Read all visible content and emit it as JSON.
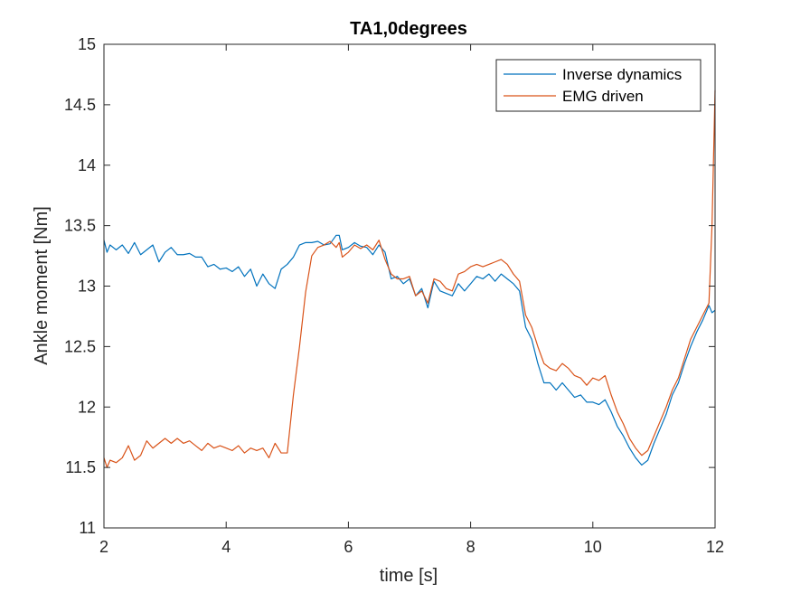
{
  "chart_data": {
    "type": "line",
    "title": "TA1,0degrees",
    "xlabel": "time  [s]",
    "ylabel": "Ankle moment [Nm]",
    "xlim": [
      2,
      12
    ],
    "ylim": [
      11,
      15
    ],
    "xticks": [
      2,
      4,
      6,
      8,
      10,
      12
    ],
    "yticks": [
      11,
      11.5,
      12,
      12.5,
      13,
      13.5,
      14,
      14.5,
      15
    ],
    "grid": false,
    "legend_position": "top-right",
    "series": [
      {
        "name": "Inverse dynamics",
        "color": "#0072BD",
        "x": [
          2.0,
          2.05,
          2.1,
          2.2,
          2.3,
          2.4,
          2.5,
          2.6,
          2.7,
          2.8,
          2.9,
          3.0,
          3.1,
          3.2,
          3.3,
          3.4,
          3.5,
          3.6,
          3.7,
          3.8,
          3.9,
          4.0,
          4.1,
          4.2,
          4.3,
          4.4,
          4.5,
          4.6,
          4.7,
          4.8,
          4.9,
          5.0,
          5.1,
          5.2,
          5.3,
          5.4,
          5.5,
          5.6,
          5.7,
          5.8,
          5.85,
          5.9,
          6.0,
          6.1,
          6.2,
          6.3,
          6.4,
          6.5,
          6.6,
          6.7,
          6.8,
          6.9,
          7.0,
          7.1,
          7.2,
          7.3,
          7.4,
          7.5,
          7.6,
          7.7,
          7.8,
          7.9,
          8.0,
          8.1,
          8.2,
          8.3,
          8.4,
          8.5,
          8.6,
          8.7,
          8.8,
          8.9,
          9.0,
          9.1,
          9.2,
          9.3,
          9.4,
          9.5,
          9.6,
          9.7,
          9.8,
          9.9,
          10.0,
          10.1,
          10.2,
          10.3,
          10.4,
          10.5,
          10.6,
          10.7,
          10.8,
          10.9,
          11.0,
          11.1,
          11.2,
          11.3,
          11.4,
          11.5,
          11.6,
          11.7,
          11.8,
          11.9,
          11.95,
          12.0
        ],
        "y": [
          13.38,
          13.28,
          13.34,
          13.3,
          13.34,
          13.27,
          13.36,
          13.26,
          13.3,
          13.34,
          13.2,
          13.28,
          13.32,
          13.26,
          13.26,
          13.27,
          13.24,
          13.24,
          13.16,
          13.18,
          13.14,
          13.15,
          13.12,
          13.16,
          13.08,
          13.14,
          13.0,
          13.1,
          13.02,
          12.98,
          13.14,
          13.18,
          13.24,
          13.34,
          13.36,
          13.36,
          13.37,
          13.34,
          13.35,
          13.42,
          13.42,
          13.3,
          13.32,
          13.36,
          13.33,
          13.32,
          13.26,
          13.34,
          13.28,
          13.06,
          13.08,
          13.02,
          13.06,
          12.92,
          12.98,
          12.82,
          13.04,
          12.96,
          12.94,
          12.92,
          13.02,
          12.96,
          13.02,
          13.08,
          13.06,
          13.1,
          13.04,
          13.1,
          13.06,
          13.02,
          12.96,
          12.66,
          12.56,
          12.36,
          12.2,
          12.2,
          12.14,
          12.2,
          12.14,
          12.08,
          12.1,
          12.04,
          12.04,
          12.02,
          12.06,
          11.96,
          11.84,
          11.76,
          11.66,
          11.58,
          11.52,
          11.56,
          11.7,
          11.82,
          11.94,
          12.1,
          12.2,
          12.36,
          12.5,
          12.62,
          12.72,
          12.84,
          12.78,
          12.8
        ]
      },
      {
        "name": "EMG driven",
        "color": "#D95319",
        "x": [
          2.0,
          2.05,
          2.1,
          2.2,
          2.3,
          2.4,
          2.5,
          2.6,
          2.7,
          2.8,
          2.9,
          3.0,
          3.1,
          3.2,
          3.3,
          3.4,
          3.5,
          3.6,
          3.7,
          3.8,
          3.9,
          4.0,
          4.1,
          4.2,
          4.3,
          4.4,
          4.5,
          4.6,
          4.7,
          4.8,
          4.9,
          5.0,
          5.1,
          5.2,
          5.3,
          5.4,
          5.5,
          5.6,
          5.7,
          5.8,
          5.85,
          5.9,
          6.0,
          6.1,
          6.2,
          6.3,
          6.4,
          6.5,
          6.6,
          6.7,
          6.8,
          6.9,
          7.0,
          7.1,
          7.2,
          7.3,
          7.4,
          7.5,
          7.6,
          7.7,
          7.8,
          7.9,
          8.0,
          8.1,
          8.2,
          8.3,
          8.4,
          8.5,
          8.6,
          8.7,
          8.8,
          8.9,
          9.0,
          9.1,
          9.2,
          9.3,
          9.4,
          9.5,
          9.6,
          9.7,
          9.8,
          9.9,
          10.0,
          10.1,
          10.2,
          10.3,
          10.4,
          10.5,
          10.6,
          10.7,
          10.8,
          10.9,
          11.0,
          11.1,
          11.2,
          11.3,
          11.4,
          11.5,
          11.6,
          11.7,
          11.8,
          11.9,
          11.95,
          12.0
        ],
        "y": [
          11.58,
          11.5,
          11.56,
          11.54,
          11.58,
          11.68,
          11.56,
          11.6,
          11.72,
          11.66,
          11.7,
          11.74,
          11.7,
          11.74,
          11.7,
          11.72,
          11.68,
          11.64,
          11.7,
          11.66,
          11.68,
          11.66,
          11.64,
          11.68,
          11.62,
          11.66,
          11.64,
          11.66,
          11.58,
          11.7,
          11.62,
          11.62,
          12.1,
          12.5,
          12.95,
          13.25,
          13.32,
          13.34,
          13.37,
          13.32,
          13.36,
          13.24,
          13.28,
          13.34,
          13.31,
          13.34,
          13.3,
          13.38,
          13.22,
          13.1,
          13.06,
          13.06,
          13.08,
          12.92,
          12.96,
          12.86,
          13.06,
          13.04,
          12.98,
          12.96,
          13.1,
          13.12,
          13.16,
          13.18,
          13.16,
          13.18,
          13.2,
          13.22,
          13.18,
          13.1,
          13.04,
          12.76,
          12.66,
          12.5,
          12.36,
          12.32,
          12.3,
          12.36,
          12.32,
          12.26,
          12.24,
          12.18,
          12.24,
          12.22,
          12.26,
          12.1,
          11.96,
          11.86,
          11.74,
          11.66,
          11.6,
          11.64,
          11.76,
          11.88,
          12.0,
          12.14,
          12.24,
          12.4,
          12.56,
          12.66,
          12.76,
          12.86,
          13.5,
          14.62
        ]
      }
    ]
  }
}
